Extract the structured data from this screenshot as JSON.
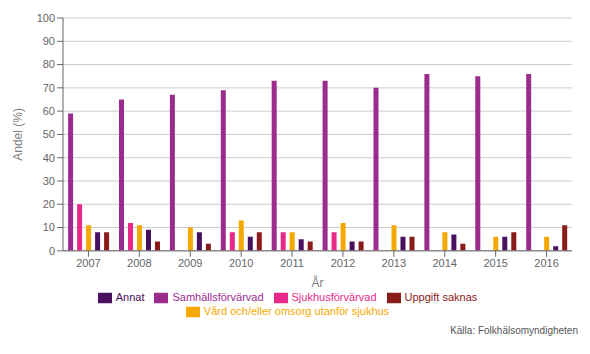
{
  "chart_data": {
    "type": "bar",
    "xlabel": "År",
    "ylabel": "Andel (%)",
    "categories": [
      "2007",
      "2008",
      "2009",
      "2010",
      "2011",
      "2012",
      "2013",
      "2014",
      "2015",
      "2016"
    ],
    "series": [
      {
        "name": "Samhällsförvärvad",
        "color": "#9B2C8E",
        "values": [
          59,
          65,
          67,
          69,
          73,
          73,
          70,
          76,
          75,
          76
        ]
      },
      {
        "name": "Sjukhusförvärvad",
        "color": "#E8298A",
        "values": [
          20,
          12,
          0,
          8,
          8,
          8,
          0,
          0,
          0,
          0
        ]
      },
      {
        "name": "Vård och/eller omsorg utanför sjukhus",
        "color": "#F5A800",
        "values": [
          11,
          11,
          10,
          13,
          8,
          12,
          11,
          8,
          6,
          6
        ]
      },
      {
        "name": "Annat",
        "color": "#4A1060",
        "values": [
          8,
          9,
          8,
          6,
          5,
          4,
          6,
          7,
          6,
          2
        ]
      },
      {
        "name": "Uppgift saknas",
        "color": "#8B1A1A",
        "values": [
          8,
          4,
          3,
          8,
          4,
          4,
          6,
          3,
          8,
          11
        ]
      }
    ],
    "ylim": [
      0,
      100
    ],
    "yticks": [
      0,
      10,
      20,
      30,
      40,
      50,
      60,
      70,
      80,
      90,
      100
    ],
    "grid": true,
    "legend": "bottom",
    "annotations": [
      "Källa: Folkhälsomyndigheten"
    ]
  }
}
